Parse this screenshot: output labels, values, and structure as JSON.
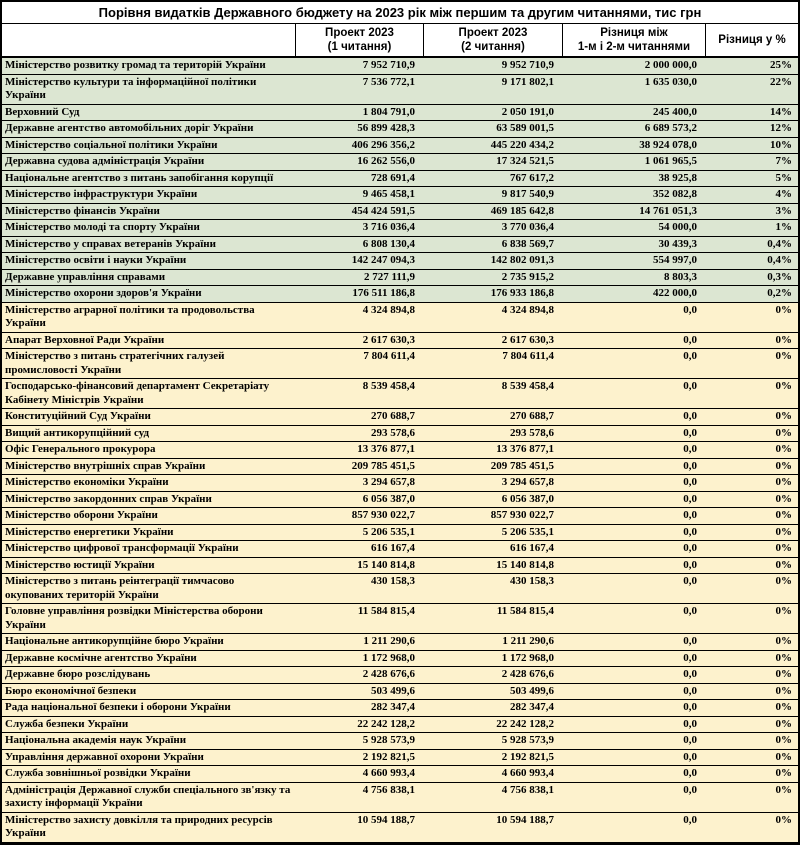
{
  "colors": {
    "changed_row_green": "#dce6d2",
    "unchanged_row_yellow": "#fdf2cd",
    "border": "#000000",
    "header_background": "#ffffff",
    "text": "#000000"
  },
  "table": {
    "title": "Порівня видатків Державного бюджету на 2023 рік між першим та другим читаннями, тис грн",
    "header": {
      "name_col": "",
      "reading1": "Проект 2023\n(1 читання)",
      "reading2": "Проект 2023\n(2 читання)",
      "difference": "Різниця між\n1-м і 2-м читаннями",
      "percent": "Різниця у %"
    },
    "rows": [
      {
        "name": "Міністерство розвитку громад та територій України",
        "reading1": "7 952 710,9",
        "reading2": "9 952 710,9",
        "diff": "2 000 000,0",
        "pct": "25%",
        "highlight": "green"
      },
      {
        "name": "Міністерство культури та інформаційної політики України",
        "reading1": "7 536 772,1",
        "reading2": "9 171 802,1",
        "diff": "1 635 030,0",
        "pct": "22%",
        "highlight": "green"
      },
      {
        "name": "Верховний Суд",
        "reading1": "1 804 791,0",
        "reading2": "2 050 191,0",
        "diff": "245 400,0",
        "pct": "14%",
        "highlight": "green"
      },
      {
        "name": "Державне агентство автомобільних доріг України",
        "reading1": "56 899 428,3",
        "reading2": "63 589 001,5",
        "diff": "6 689 573,2",
        "pct": "12%",
        "highlight": "green"
      },
      {
        "name": "Міністерство соціальної політики України",
        "reading1": "406 296 356,2",
        "reading2": "445 220 434,2",
        "diff": "38 924 078,0",
        "pct": "10%",
        "highlight": "green"
      },
      {
        "name": "Державна судова адміністрація України",
        "reading1": "16 262 556,0",
        "reading2": "17 324 521,5",
        "diff": "1 061 965,5",
        "pct": "7%",
        "highlight": "green"
      },
      {
        "name": "Національне агентство з питань запобігання корупції",
        "reading1": "728 691,4",
        "reading2": "767 617,2",
        "diff": "38 925,8",
        "pct": "5%",
        "highlight": "green"
      },
      {
        "name": "Міністерство інфраструктури України",
        "reading1": "9 465 458,1",
        "reading2": "9 817 540,9",
        "diff": "352 082,8",
        "pct": "4%",
        "highlight": "green"
      },
      {
        "name": "Міністерство фінансів України",
        "reading1": "454 424 591,5",
        "reading2": "469 185 642,8",
        "diff": "14 761 051,3",
        "pct": "3%",
        "highlight": "green"
      },
      {
        "name": "Міністерство молоді та спорту України",
        "reading1": "3 716 036,4",
        "reading2": "3 770 036,4",
        "diff": "54 000,0",
        "pct": "1%",
        "highlight": "green"
      },
      {
        "name": "Міністерство у справах ветеранів України",
        "reading1": "6 808 130,4",
        "reading2": "6 838 569,7",
        "diff": "30 439,3",
        "pct": "0,4%",
        "highlight": "green"
      },
      {
        "name": "Міністерство освіти і науки України",
        "reading1": "142 247 094,3",
        "reading2": "142 802 091,3",
        "diff": "554 997,0",
        "pct": "0,4%",
        "highlight": "green"
      },
      {
        "name": "Державне управління справами",
        "reading1": "2 727 111,9",
        "reading2": "2 735 915,2",
        "diff": "8 803,3",
        "pct": "0,3%",
        "highlight": "green"
      },
      {
        "name": "Міністерство охорони здоров'я України",
        "reading1": "176 511 186,8",
        "reading2": "176 933 186,8",
        "diff": "422 000,0",
        "pct": "0,2%",
        "highlight": "green"
      },
      {
        "name": "Міністерство аграрної політики та продовольства України",
        "reading1": "4 324 894,8",
        "reading2": "4 324 894,8",
        "diff": "0,0",
        "pct": "0%",
        "highlight": "yellow"
      },
      {
        "name": "Апарат Верховної Ради України",
        "reading1": "2 617 630,3",
        "reading2": "2 617 630,3",
        "diff": "0,0",
        "pct": "0%",
        "highlight": "yellow"
      },
      {
        "name": "Міністерство з питань стратегічних галузей промисловості України",
        "reading1": "7 804 611,4",
        "reading2": "7 804 611,4",
        "diff": "0,0",
        "pct": "0%",
        "highlight": "yellow"
      },
      {
        "name": "Господарсько-фінансовий департамент Секретаріату Кабінету Міністрів України",
        "reading1": "8 539 458,4",
        "reading2": "8 539 458,4",
        "diff": "0,0",
        "pct": "0%",
        "highlight": "yellow"
      },
      {
        "name": "Конституційний Суд України",
        "reading1": "270 688,7",
        "reading2": "270 688,7",
        "diff": "0,0",
        "pct": "0%",
        "highlight": "yellow"
      },
      {
        "name": "Вищий антикорупційний суд",
        "reading1": "293 578,6",
        "reading2": "293 578,6",
        "diff": "0,0",
        "pct": "0%",
        "highlight": "yellow"
      },
      {
        "name": "Офіс Генерального прокурора",
        "reading1": "13 376 877,1",
        "reading2": "13 376 877,1",
        "diff": "0,0",
        "pct": "0%",
        "highlight": "yellow"
      },
      {
        "name": "Міністерство внутрішніх справ України",
        "reading1": "209 785 451,5",
        "reading2": "209 785 451,5",
        "diff": "0,0",
        "pct": "0%",
        "highlight": "yellow"
      },
      {
        "name": "Міністерство економіки України",
        "reading1": "3 294 657,8",
        "reading2": "3 294 657,8",
        "diff": "0,0",
        "pct": "0%",
        "highlight": "yellow"
      },
      {
        "name": "Міністерство закордонних справ України",
        "reading1": "6 056 387,0",
        "reading2": "6 056 387,0",
        "diff": "0,0",
        "pct": "0%",
        "highlight": "yellow"
      },
      {
        "name": "Міністерство оборони України",
        "reading1": "857 930 022,7",
        "reading2": "857 930 022,7",
        "diff": "0,0",
        "pct": "0%",
        "highlight": "yellow"
      },
      {
        "name": "Міністерство енергетики України",
        "reading1": "5 206 535,1",
        "reading2": "5 206 535,1",
        "diff": "0,0",
        "pct": "0%",
        "highlight": "yellow"
      },
      {
        "name": "Міністерство цифрової трансформації України",
        "reading1": "616 167,4",
        "reading2": "616 167,4",
        "diff": "0,0",
        "pct": "0%",
        "highlight": "yellow"
      },
      {
        "name": "Міністерство юстиції України",
        "reading1": "15 140 814,8",
        "reading2": "15 140 814,8",
        "diff": "0,0",
        "pct": "0%",
        "highlight": "yellow"
      },
      {
        "name": "Міністерство з питань реінтеграції тимчасово окупованих територій України",
        "reading1": "430 158,3",
        "reading2": "430 158,3",
        "diff": "0,0",
        "pct": "0%",
        "highlight": "yellow"
      },
      {
        "name": "Головне управління розвідки Міністерства оборони України",
        "reading1": "11 584 815,4",
        "reading2": "11 584 815,4",
        "diff": "0,0",
        "pct": "0%",
        "highlight": "yellow"
      },
      {
        "name": "Національне антикорупційне бюро України",
        "reading1": "1 211 290,6",
        "reading2": "1 211 290,6",
        "diff": "0,0",
        "pct": "0%",
        "highlight": "yellow"
      },
      {
        "name": "Державне космічне агентство України",
        "reading1": "1 172 968,0",
        "reading2": "1 172 968,0",
        "diff": "0,0",
        "pct": "0%",
        "highlight": "yellow"
      },
      {
        "name": "Державне бюро розслідувань",
        "reading1": "2 428 676,6",
        "reading2": "2 428 676,6",
        "diff": "0,0",
        "pct": "0%",
        "highlight": "yellow"
      },
      {
        "name": "Бюро економічної безпеки",
        "reading1": "503 499,6",
        "reading2": "503 499,6",
        "diff": "0,0",
        "pct": "0%",
        "highlight": "yellow"
      },
      {
        "name": "Рада національної безпеки і оборони України",
        "reading1": "282 347,4",
        "reading2": "282 347,4",
        "diff": "0,0",
        "pct": "0%",
        "highlight": "yellow"
      },
      {
        "name": "Служба безпеки України",
        "reading1": "22 242 128,2",
        "reading2": "22 242 128,2",
        "diff": "0,0",
        "pct": "0%",
        "highlight": "yellow"
      },
      {
        "name": "Національна академія наук України",
        "reading1": "5 928 573,9",
        "reading2": "5 928 573,9",
        "diff": "0,0",
        "pct": "0%",
        "highlight": "yellow"
      },
      {
        "name": "Управління державної охорони України",
        "reading1": "2 192 821,5",
        "reading2": "2 192 821,5",
        "diff": "0,0",
        "pct": "0%",
        "highlight": "yellow"
      },
      {
        "name": "Служба зовнішньої розвідки України",
        "reading1": "4 660 993,4",
        "reading2": "4 660 993,4",
        "diff": "0,0",
        "pct": "0%",
        "highlight": "yellow"
      },
      {
        "name": "Адміністрація Державної служби спеціального зв'язку та захисту інформації України",
        "reading1": "4 756 838,1",
        "reading2": "4 756 838,1",
        "diff": "0,0",
        "pct": "0%",
        "highlight": "yellow"
      },
      {
        "name": "Міністерство захисту довкілля та природних ресурсів України",
        "reading1": "10 594 188,7",
        "reading2": "10 594 188,7",
        "diff": "0,0",
        "pct": "0%",
        "highlight": "yellow"
      }
    ]
  }
}
